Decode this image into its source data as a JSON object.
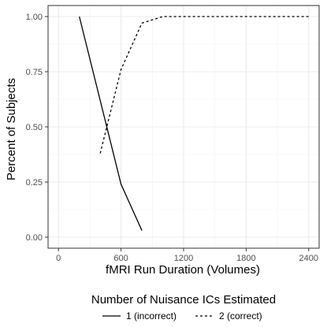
{
  "chart_data": {
    "type": "line",
    "xlabel": "fMRI Run Duration (Volumes)",
    "ylabel": "Percent of Subjects",
    "xlim": [
      -100,
      2500
    ],
    "ylim": [
      -0.05,
      1.05
    ],
    "x_ticks": [
      0,
      600,
      1200,
      1800,
      2400
    ],
    "x_tick_labels": [
      "0",
      "600",
      "1200",
      "1800",
      "2400"
    ],
    "y_ticks": [
      0,
      0.25,
      0.5,
      0.75,
      1.0
    ],
    "y_tick_labels": [
      "0.00",
      "0.25",
      "0.50",
      "0.75",
      "1.00"
    ],
    "grid": true,
    "legend_title": "Number of Nuisance ICs Estimated",
    "legend_position": "bottom",
    "series": [
      {
        "name": "1 (incorrect)",
        "line_style": "solid",
        "color": "#000000",
        "x": [
          200,
          600,
          800
        ],
        "y": [
          1.0,
          0.24,
          0.03
        ]
      },
      {
        "name": "2 (correct)",
        "line_style": "dashed",
        "color": "#000000",
        "x": [
          400,
          600,
          800,
          1000,
          1200,
          1400,
          1600,
          1800,
          2000,
          2200,
          2400
        ],
        "y": [
          0.38,
          0.76,
          0.97,
          1.0,
          1.0,
          1.0,
          1.0,
          1.0,
          1.0,
          1.0,
          1.0
        ]
      }
    ]
  }
}
